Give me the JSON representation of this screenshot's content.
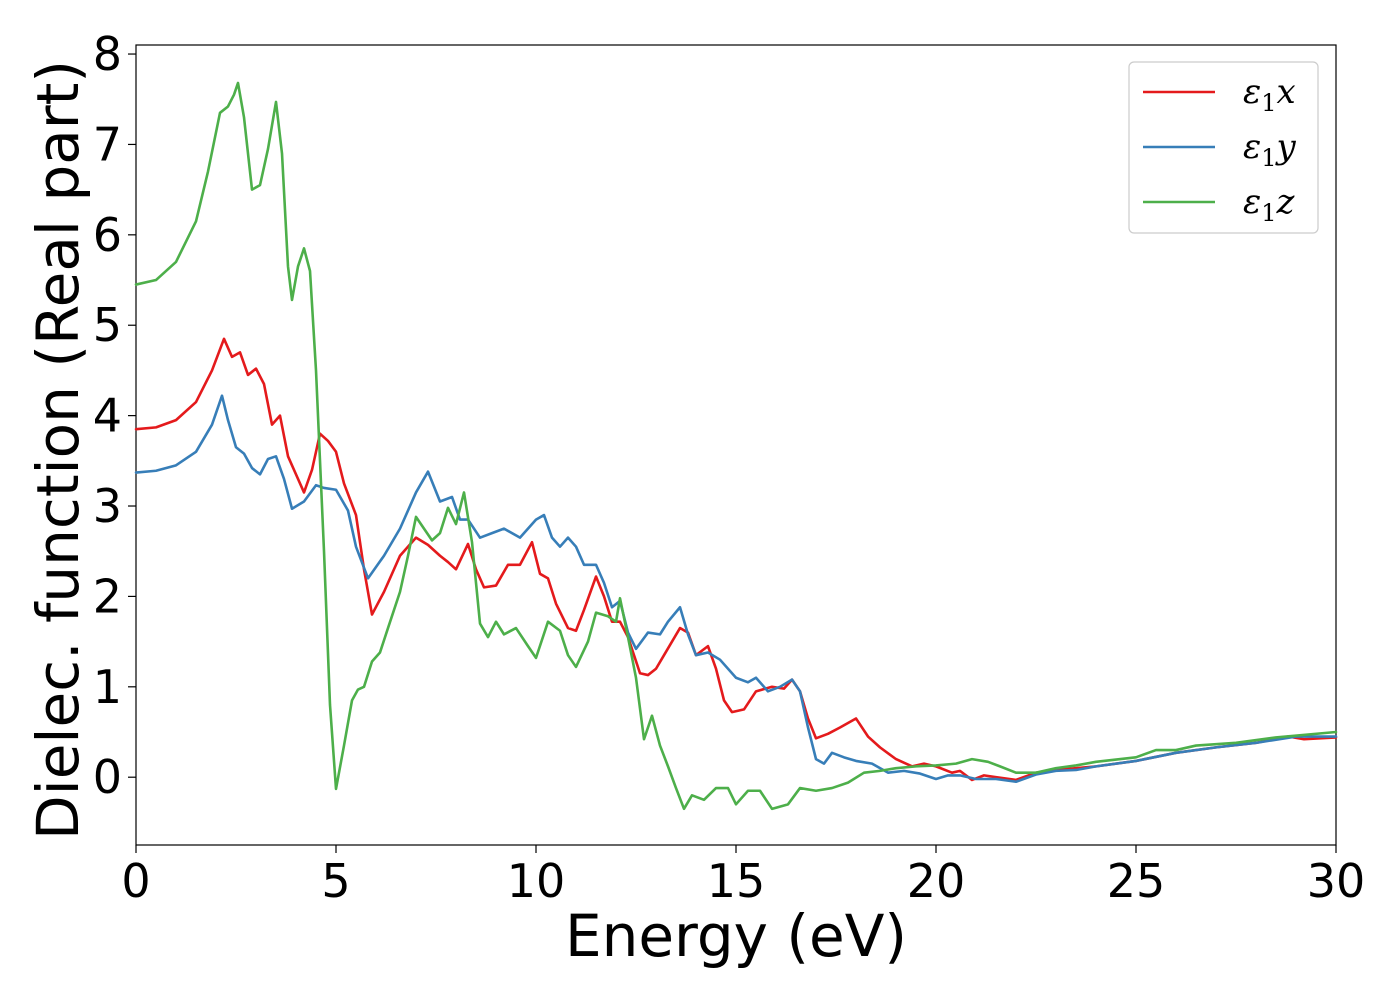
{
  "chart_data": {
    "type": "line",
    "title": "",
    "xlabel": "Energy (eV)",
    "ylabel": "Dielec. function (Real part)",
    "xlim": [
      0,
      30
    ],
    "ylim": [
      -0.75,
      8.1
    ],
    "xticks": [
      0,
      5,
      10,
      15,
      20,
      25,
      30
    ],
    "yticks": [
      0,
      1,
      2,
      3,
      4,
      5,
      6,
      7,
      8
    ],
    "grid": false,
    "legend_position": "top-right",
    "series": [
      {
        "name": "ε1x",
        "legend_base": "ε",
        "legend_sub": "1",
        "legend_var": "x",
        "color": "#e41a1c",
        "points": [
          [
            0,
            3.85
          ],
          [
            0.5,
            3.87
          ],
          [
            1.0,
            3.95
          ],
          [
            1.5,
            4.15
          ],
          [
            1.9,
            4.5
          ],
          [
            2.2,
            4.85
          ],
          [
            2.4,
            4.65
          ],
          [
            2.6,
            4.7
          ],
          [
            2.8,
            4.45
          ],
          [
            3.0,
            4.52
          ],
          [
            3.2,
            4.35
          ],
          [
            3.4,
            3.9
          ],
          [
            3.6,
            4.0
          ],
          [
            3.8,
            3.55
          ],
          [
            4.0,
            3.35
          ],
          [
            4.2,
            3.15
          ],
          [
            4.4,
            3.4
          ],
          [
            4.6,
            3.8
          ],
          [
            4.8,
            3.72
          ],
          [
            5.0,
            3.6
          ],
          [
            5.2,
            3.25
          ],
          [
            5.5,
            2.9
          ],
          [
            5.7,
            2.3
          ],
          [
            5.9,
            1.8
          ],
          [
            6.2,
            2.05
          ],
          [
            6.6,
            2.45
          ],
          [
            7.0,
            2.65
          ],
          [
            7.3,
            2.57
          ],
          [
            7.6,
            2.45
          ],
          [
            7.8,
            2.38
          ],
          [
            8.0,
            2.3
          ],
          [
            8.3,
            2.58
          ],
          [
            8.5,
            2.3
          ],
          [
            8.7,
            2.1
          ],
          [
            9.0,
            2.12
          ],
          [
            9.3,
            2.35
          ],
          [
            9.6,
            2.35
          ],
          [
            9.9,
            2.6
          ],
          [
            10.1,
            2.25
          ],
          [
            10.3,
            2.2
          ],
          [
            10.5,
            1.92
          ],
          [
            10.8,
            1.65
          ],
          [
            11.0,
            1.62
          ],
          [
            11.2,
            1.85
          ],
          [
            11.5,
            2.22
          ],
          [
            11.7,
            2.0
          ],
          [
            11.9,
            1.72
          ],
          [
            12.1,
            1.72
          ],
          [
            12.3,
            1.55
          ],
          [
            12.6,
            1.15
          ],
          [
            12.8,
            1.13
          ],
          [
            13.0,
            1.2
          ],
          [
            13.2,
            1.35
          ],
          [
            13.6,
            1.65
          ],
          [
            13.8,
            1.6
          ],
          [
            14.0,
            1.35
          ],
          [
            14.3,
            1.45
          ],
          [
            14.5,
            1.2
          ],
          [
            14.7,
            0.85
          ],
          [
            14.9,
            0.72
          ],
          [
            15.2,
            0.75
          ],
          [
            15.5,
            0.95
          ],
          [
            15.9,
            1.0
          ],
          [
            16.2,
            0.98
          ],
          [
            16.4,
            1.08
          ],
          [
            16.6,
            0.95
          ],
          [
            16.8,
            0.65
          ],
          [
            17.0,
            0.43
          ],
          [
            17.3,
            0.48
          ],
          [
            17.6,
            0.55
          ],
          [
            18.0,
            0.65
          ],
          [
            18.3,
            0.45
          ],
          [
            18.6,
            0.33
          ],
          [
            19.0,
            0.2
          ],
          [
            19.4,
            0.12
          ],
          [
            19.7,
            0.15
          ],
          [
            20.0,
            0.12
          ],
          [
            20.4,
            0.05
          ],
          [
            20.6,
            0.07
          ],
          [
            20.9,
            -0.03
          ],
          [
            21.2,
            0.02
          ],
          [
            21.5,
            0.0
          ],
          [
            22.0,
            -0.03
          ],
          [
            22.5,
            0.05
          ],
          [
            23.0,
            0.08
          ],
          [
            23.5,
            0.1
          ],
          [
            24.0,
            0.12
          ],
          [
            25.0,
            0.18
          ],
          [
            26.0,
            0.27
          ],
          [
            27.0,
            0.33
          ],
          [
            28.0,
            0.38
          ],
          [
            28.8,
            0.45
          ],
          [
            29.2,
            0.42
          ],
          [
            30.0,
            0.44
          ]
        ]
      },
      {
        "name": "ε1y",
        "legend_base": "ε",
        "legend_sub": "1",
        "legend_var": "y",
        "color": "#377eb8",
        "points": [
          [
            0,
            3.37
          ],
          [
            0.5,
            3.39
          ],
          [
            1.0,
            3.45
          ],
          [
            1.5,
            3.6
          ],
          [
            1.9,
            3.9
          ],
          [
            2.15,
            4.22
          ],
          [
            2.3,
            3.95
          ],
          [
            2.5,
            3.65
          ],
          [
            2.7,
            3.58
          ],
          [
            2.9,
            3.42
          ],
          [
            3.1,
            3.35
          ],
          [
            3.3,
            3.52
          ],
          [
            3.5,
            3.55
          ],
          [
            3.7,
            3.3
          ],
          [
            3.9,
            2.97
          ],
          [
            4.2,
            3.05
          ],
          [
            4.5,
            3.23
          ],
          [
            4.7,
            3.2
          ],
          [
            5.0,
            3.18
          ],
          [
            5.3,
            2.95
          ],
          [
            5.5,
            2.55
          ],
          [
            5.8,
            2.2
          ],
          [
            6.2,
            2.45
          ],
          [
            6.6,
            2.75
          ],
          [
            7.0,
            3.15
          ],
          [
            7.3,
            3.38
          ],
          [
            7.6,
            3.05
          ],
          [
            7.9,
            3.1
          ],
          [
            8.1,
            2.85
          ],
          [
            8.3,
            2.85
          ],
          [
            8.6,
            2.65
          ],
          [
            8.9,
            2.7
          ],
          [
            9.2,
            2.75
          ],
          [
            9.6,
            2.65
          ],
          [
            10.0,
            2.85
          ],
          [
            10.2,
            2.9
          ],
          [
            10.4,
            2.65
          ],
          [
            10.6,
            2.55
          ],
          [
            10.8,
            2.65
          ],
          [
            11.0,
            2.55
          ],
          [
            11.2,
            2.35
          ],
          [
            11.5,
            2.35
          ],
          [
            11.7,
            2.15
          ],
          [
            11.9,
            1.88
          ],
          [
            12.1,
            1.95
          ],
          [
            12.3,
            1.6
          ],
          [
            12.5,
            1.42
          ],
          [
            12.8,
            1.6
          ],
          [
            13.1,
            1.58
          ],
          [
            13.3,
            1.72
          ],
          [
            13.6,
            1.88
          ],
          [
            13.8,
            1.58
          ],
          [
            14.0,
            1.35
          ],
          [
            14.3,
            1.38
          ],
          [
            14.6,
            1.3
          ],
          [
            15.0,
            1.1
          ],
          [
            15.3,
            1.05
          ],
          [
            15.5,
            1.1
          ],
          [
            15.8,
            0.95
          ],
          [
            16.1,
            1.0
          ],
          [
            16.4,
            1.08
          ],
          [
            16.6,
            0.95
          ],
          [
            16.8,
            0.55
          ],
          [
            17.0,
            0.2
          ],
          [
            17.2,
            0.15
          ],
          [
            17.4,
            0.27
          ],
          [
            17.7,
            0.22
          ],
          [
            18.0,
            0.18
          ],
          [
            18.4,
            0.15
          ],
          [
            18.8,
            0.05
          ],
          [
            19.2,
            0.07
          ],
          [
            19.6,
            0.04
          ],
          [
            20.0,
            -0.02
          ],
          [
            20.3,
            0.02
          ],
          [
            20.6,
            0.02
          ],
          [
            21.0,
            -0.02
          ],
          [
            21.5,
            -0.02
          ],
          [
            22.0,
            -0.05
          ],
          [
            22.5,
            0.03
          ],
          [
            23.0,
            0.07
          ],
          [
            23.5,
            0.08
          ],
          [
            24.0,
            0.12
          ],
          [
            25.0,
            0.18
          ],
          [
            26.0,
            0.27
          ],
          [
            27.0,
            0.33
          ],
          [
            28.0,
            0.38
          ],
          [
            29.0,
            0.45
          ],
          [
            30.0,
            0.45
          ]
        ]
      },
      {
        "name": "ε1z",
        "legend_base": "ε",
        "legend_sub": "1",
        "legend_var": "z",
        "color": "#4daf4a",
        "points": [
          [
            0,
            5.45
          ],
          [
            0.5,
            5.5
          ],
          [
            1.0,
            5.7
          ],
          [
            1.5,
            6.15
          ],
          [
            1.8,
            6.7
          ],
          [
            2.1,
            7.35
          ],
          [
            2.3,
            7.42
          ],
          [
            2.45,
            7.55
          ],
          [
            2.55,
            7.68
          ],
          [
            2.7,
            7.3
          ],
          [
            2.9,
            6.5
          ],
          [
            3.1,
            6.55
          ],
          [
            3.3,
            6.95
          ],
          [
            3.5,
            7.47
          ],
          [
            3.65,
            6.9
          ],
          [
            3.8,
            5.65
          ],
          [
            3.9,
            5.28
          ],
          [
            4.05,
            5.65
          ],
          [
            4.2,
            5.85
          ],
          [
            4.35,
            5.6
          ],
          [
            4.5,
            4.5
          ],
          [
            4.7,
            2.5
          ],
          [
            4.85,
            0.8
          ],
          [
            5.0,
            -0.13
          ],
          [
            5.2,
            0.35
          ],
          [
            5.4,
            0.85
          ],
          [
            5.55,
            0.97
          ],
          [
            5.7,
            1.0
          ],
          [
            5.9,
            1.28
          ],
          [
            6.1,
            1.38
          ],
          [
            6.3,
            1.65
          ],
          [
            6.6,
            2.05
          ],
          [
            6.8,
            2.45
          ],
          [
            7.0,
            2.88
          ],
          [
            7.2,
            2.75
          ],
          [
            7.4,
            2.62
          ],
          [
            7.6,
            2.7
          ],
          [
            7.8,
            2.98
          ],
          [
            8.0,
            2.8
          ],
          [
            8.2,
            3.15
          ],
          [
            8.4,
            2.6
          ],
          [
            8.6,
            1.7
          ],
          [
            8.8,
            1.55
          ],
          [
            9.0,
            1.72
          ],
          [
            9.2,
            1.58
          ],
          [
            9.5,
            1.65
          ],
          [
            9.8,
            1.45
          ],
          [
            10.0,
            1.32
          ],
          [
            10.3,
            1.72
          ],
          [
            10.6,
            1.62
          ],
          [
            10.8,
            1.35
          ],
          [
            11.0,
            1.22
          ],
          [
            11.3,
            1.5
          ],
          [
            11.5,
            1.82
          ],
          [
            11.8,
            1.78
          ],
          [
            12.0,
            1.72
          ],
          [
            12.1,
            1.98
          ],
          [
            12.3,
            1.55
          ],
          [
            12.5,
            1.1
          ],
          [
            12.7,
            0.42
          ],
          [
            12.9,
            0.68
          ],
          [
            13.1,
            0.35
          ],
          [
            13.3,
            0.12
          ],
          [
            13.5,
            -0.12
          ],
          [
            13.7,
            -0.35
          ],
          [
            13.9,
            -0.2
          ],
          [
            14.2,
            -0.25
          ],
          [
            14.5,
            -0.12
          ],
          [
            14.8,
            -0.12
          ],
          [
            15.0,
            -0.3
          ],
          [
            15.3,
            -0.15
          ],
          [
            15.6,
            -0.15
          ],
          [
            15.9,
            -0.35
          ],
          [
            16.3,
            -0.3
          ],
          [
            16.6,
            -0.12
          ],
          [
            17.0,
            -0.15
          ],
          [
            17.4,
            -0.12
          ],
          [
            17.8,
            -0.06
          ],
          [
            18.2,
            0.05
          ],
          [
            18.6,
            0.07
          ],
          [
            19.0,
            0.1
          ],
          [
            19.5,
            0.12
          ],
          [
            20.0,
            0.13
          ],
          [
            20.5,
            0.15
          ],
          [
            20.9,
            0.2
          ],
          [
            21.3,
            0.17
          ],
          [
            21.6,
            0.12
          ],
          [
            22.0,
            0.05
          ],
          [
            22.5,
            0.05
          ],
          [
            23.0,
            0.1
          ],
          [
            23.5,
            0.13
          ],
          [
            24.0,
            0.17
          ],
          [
            25.0,
            0.22
          ],
          [
            25.5,
            0.3
          ],
          [
            26.0,
            0.3
          ],
          [
            26.5,
            0.35
          ],
          [
            27.5,
            0.38
          ],
          [
            28.5,
            0.44
          ],
          [
            30.0,
            0.5
          ]
        ]
      }
    ]
  }
}
